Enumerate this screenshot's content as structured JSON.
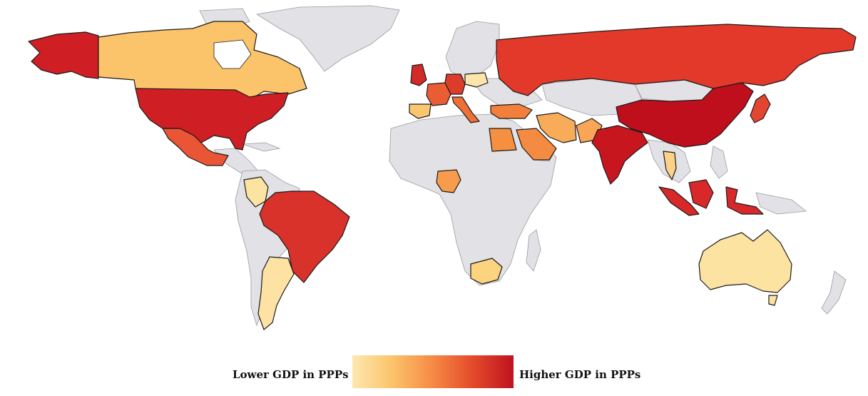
{
  "map": {
    "type": "choropleth",
    "projection": "world",
    "scale_colors": [
      "#fde8b0",
      "#fbc36a",
      "#f58a45",
      "#e34a2a",
      "#c0121f"
    ],
    "no_data_color": "#e2e2e6",
    "countries": [
      {
        "name": "Canada",
        "color": "#fcc46a"
      },
      {
        "name": "United States",
        "color": "#cf1f24"
      },
      {
        "name": "Mexico",
        "color": "#ea5535"
      },
      {
        "name": "Colombia",
        "color": "#fbe3a2"
      },
      {
        "name": "Brazil",
        "color": "#d9322a"
      },
      {
        "name": "Argentina",
        "color": "#fde2a4"
      },
      {
        "name": "United Kingdom",
        "color": "#d22a26"
      },
      {
        "name": "France",
        "color": "#ea5d34"
      },
      {
        "name": "Germany",
        "color": "#dd3c2b"
      },
      {
        "name": "Spain",
        "color": "#fbc76e"
      },
      {
        "name": "Italy",
        "color": "#ee7036"
      },
      {
        "name": "Poland",
        "color": "#fde6ab"
      },
      {
        "name": "Russia",
        "color": "#e2392a"
      },
      {
        "name": "Turkey",
        "color": "#f2803c"
      },
      {
        "name": "Egypt",
        "color": "#f4903f"
      },
      {
        "name": "Saudi Arabia",
        "color": "#f58b42"
      },
      {
        "name": "Iran",
        "color": "#f8ac5a"
      },
      {
        "name": "Pakistan",
        "color": "#f8a655"
      },
      {
        "name": "India",
        "color": "#c8161f"
      },
      {
        "name": "China",
        "color": "#bf0f1d"
      },
      {
        "name": "Japan",
        "color": "#e34530"
      },
      {
        "name": "Thailand",
        "color": "#fbd287"
      },
      {
        "name": "Indonesia",
        "color": "#d8282a"
      },
      {
        "name": "Nigeria",
        "color": "#f79c4c"
      },
      {
        "name": "South Africa",
        "color": "#fcd37f"
      },
      {
        "name": "Australia",
        "color": "#fde3a2"
      }
    ]
  },
  "legend": {
    "low_label": "Lower GDP in PPPs",
    "high_label": "Higher GDP in PPPs"
  }
}
